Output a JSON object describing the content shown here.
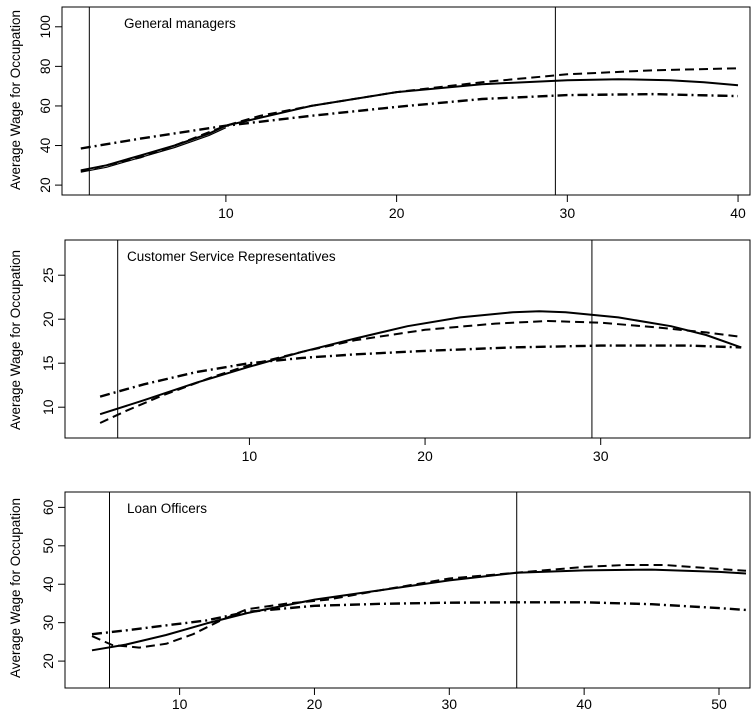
{
  "chart_data": [
    {
      "type": "line",
      "title": "General managers",
      "xlabel": "",
      "ylabel": "Average Wage for Occupation",
      "xlim": [
        0.4,
        40.7
      ],
      "ylim": [
        15,
        110
      ],
      "xticks": [
        10,
        20,
        30,
        40
      ],
      "yticks": [
        20,
        40,
        60,
        80,
        100
      ],
      "vlines": [
        2,
        29.3
      ],
      "series": [
        {
          "style": "solid",
          "x": [
            1.5,
            3,
            5,
            7,
            9,
            10,
            12,
            15,
            20,
            25,
            30,
            33,
            36,
            38,
            40
          ],
          "y": [
            27.5,
            30,
            35,
            40,
            46,
            50,
            54,
            60,
            67,
            71,
            73,
            73.5,
            73,
            72,
            70.5
          ]
        },
        {
          "style": "solid-thin",
          "x": [
            1.5,
            3,
            5,
            7,
            9,
            10
          ],
          "y": [
            26.5,
            29,
            34,
            39,
            45,
            49
          ]
        },
        {
          "style": "dashed",
          "x": [
            1.5,
            3,
            5,
            7,
            10,
            12,
            15,
            20,
            25,
            30,
            35,
            40
          ],
          "y": [
            27,
            30,
            34,
            40,
            50,
            55,
            60,
            67,
            72,
            76,
            78,
            79
          ]
        },
        {
          "style": "dashdot",
          "x": [
            1.5,
            5,
            10,
            15,
            20,
            25,
            30,
            35,
            40
          ],
          "y": [
            38.5,
            43.5,
            50,
            55,
            59.5,
            63.5,
            65.5,
            66,
            65
          ]
        }
      ]
    },
    {
      "type": "line",
      "title": "Customer Service Representatives",
      "xlabel": "",
      "ylabel": "Average Wage for Occupation",
      "xlim": [
        -0.5,
        38.5
      ],
      "ylim": [
        6.5,
        29
      ],
      "xticks": [
        10,
        20,
        30
      ],
      "yticks": [
        10,
        15,
        20,
        25
      ],
      "vlines": [
        2.5,
        29.5
      ],
      "series": [
        {
          "style": "solid",
          "x": [
            1.5,
            4,
            7,
            10,
            13,
            16,
            19,
            22,
            25,
            26.5,
            28,
            31,
            34,
            36,
            38
          ],
          "y": [
            9.2,
            10.8,
            12.8,
            14.6,
            16.3,
            17.8,
            19.2,
            20.2,
            20.8,
            20.9,
            20.8,
            20.2,
            19.2,
            18.2,
            16.8
          ]
        },
        {
          "style": "dashed",
          "x": [
            1.5,
            3,
            5,
            8,
            10,
            13,
            16,
            20,
            24,
            27,
            30,
            33,
            36,
            38
          ],
          "y": [
            8.2,
            9.6,
            11.3,
            13.5,
            14.8,
            16.3,
            17.6,
            18.8,
            19.5,
            19.8,
            19.6,
            19.1,
            18.5,
            18.0
          ]
        },
        {
          "style": "dashdot",
          "x": [
            1.5,
            4,
            7,
            10,
            13,
            16,
            20,
            25,
            30,
            35,
            38
          ],
          "y": [
            11.2,
            12.6,
            14.0,
            15.0,
            15.6,
            16.0,
            16.4,
            16.8,
            17.0,
            17.0,
            16.8
          ]
        }
      ]
    },
    {
      "type": "line",
      "title": "Loan Officers",
      "xlabel": "",
      "ylabel": "Average Wage for Occupation",
      "xlim": [
        1.5,
        52.3
      ],
      "ylim": [
        13,
        64
      ],
      "xticks": [
        10,
        20,
        30,
        40,
        50
      ],
      "yticks": [
        20,
        30,
        40,
        50,
        60
      ],
      "vlines": [
        4.8,
        35
      ],
      "series": [
        {
          "style": "solid",
          "x": [
            3.5,
            6,
            9,
            12,
            15,
            20,
            25,
            30,
            35,
            40,
            45,
            50,
            52
          ],
          "y": [
            22.8,
            24.3,
            26.8,
            29.8,
            32.5,
            36,
            38.5,
            41,
            43,
            43.6,
            43.8,
            43.2,
            42.8
          ]
        },
        {
          "style": "dashed",
          "x": [
            3.5,
            5,
            7,
            9,
            11,
            13,
            15,
            18,
            21,
            25,
            30,
            35,
            40,
            43,
            46,
            50,
            52
          ],
          "y": [
            26.5,
            24.2,
            23.5,
            24.5,
            27,
            30.5,
            33.5,
            35,
            36,
            38.5,
            41.5,
            43,
            44.5,
            45,
            45,
            44,
            43.5
          ]
        },
        {
          "style": "dashdot",
          "x": [
            3.5,
            6,
            9,
            12,
            15,
            20,
            25,
            30,
            35,
            40,
            45,
            50,
            52
          ],
          "y": [
            27,
            28,
            29.3,
            30.6,
            32.8,
            34.4,
            34.9,
            35.2,
            35.3,
            35.3,
            34.8,
            33.8,
            33.3
          ]
        }
      ]
    }
  ]
}
